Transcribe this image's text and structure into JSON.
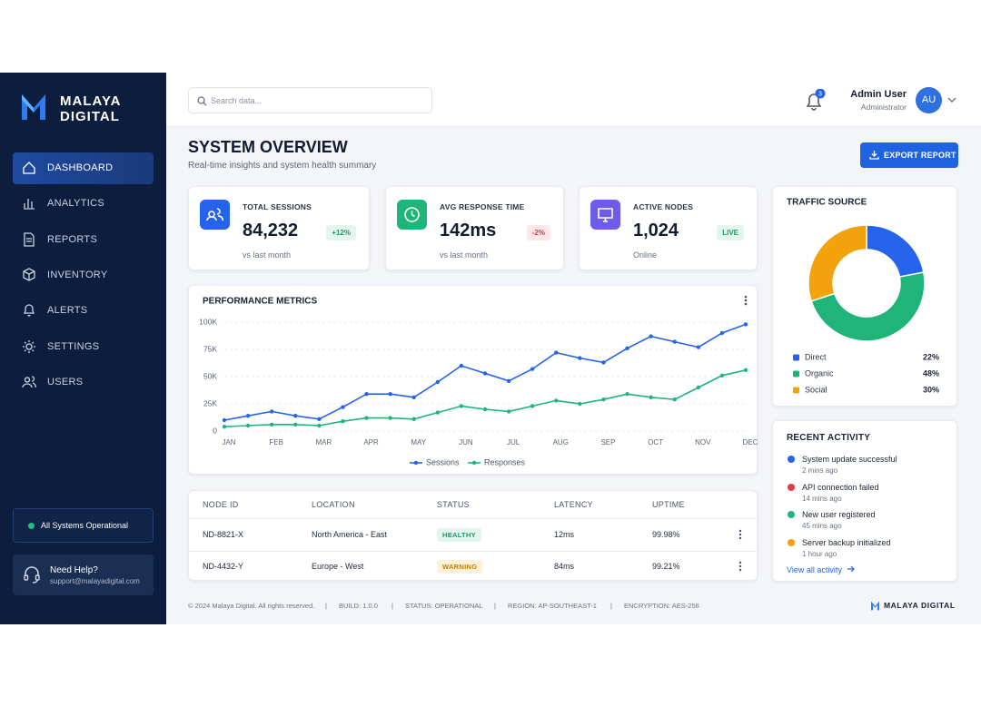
{
  "sidebar": {
    "brand": [
      "MALAYA",
      "DIGITAL"
    ],
    "nav": [
      "DASHBOARD",
      "ANALYTICS",
      "REPORTS",
      "INVENTORY",
      "ALERTS",
      "SETTINGS",
      "USERS"
    ],
    "status": "All Systems Operational",
    "help": {
      "title": "Need Help?",
      "email": "support@malayadigital.com"
    }
  },
  "header": {
    "search_placeholder": "Search data...",
    "notifications": "3",
    "user": {
      "name": "Admin User",
      "role": "Administrator",
      "initials": "AU"
    }
  },
  "page": {
    "title": "SYSTEM OVERVIEW",
    "subtitle": "Real-time insights and system health summary",
    "export": "EXPORT REPORT"
  },
  "kpis": [
    {
      "label": "TOTAL SESSIONS",
      "value": "84,232",
      "change": "+12%",
      "note": "vs last month"
    },
    {
      "label": "AVG RESPONSE TIME",
      "value": "142ms",
      "change": "-2%",
      "note": "vs last month"
    },
    {
      "label": "ACTIVE NODES",
      "value": "1,024",
      "change": "LIVE",
      "note": "Online"
    }
  ],
  "chart_data": [
    {
      "type": "line",
      "title": "PERFORMANCE METRICS",
      "categories": [
        "JAN",
        null,
        "FEB",
        null,
        "MAR",
        null,
        "APR",
        null,
        "MAY",
        null,
        "JUN",
        null,
        "JUL",
        null,
        "AUG",
        null,
        "SEP",
        null,
        "OCT",
        null,
        "NOV",
        null,
        "DEC"
      ],
      "series": [
        {
          "name": "Sessions",
          "color": "#2563eb",
          "values": [
            10000,
            14000,
            18000,
            14000,
            11000,
            22000,
            34000,
            34000,
            31000,
            45000,
            60000,
            53000,
            46000,
            57000,
            72000,
            67000,
            63000,
            76000,
            87000,
            82000,
            77000,
            90000,
            98000
          ]
        },
        {
          "name": "Responses",
          "color": "#1fb57a",
          "values": [
            4000,
            5000,
            6000,
            6000,
            5000,
            9000,
            12000,
            12000,
            11000,
            17000,
            23000,
            20000,
            18000,
            23000,
            28000,
            25000,
            29000,
            34000,
            31000,
            29000,
            40000,
            51000,
            56000
          ]
        }
      ],
      "ylim": [
        0,
        100000
      ],
      "yticks": [
        0,
        {
          "value": 25000,
          "label": "25K"
        },
        {
          "value": 50000,
          "label": "50K"
        },
        {
          "value": 75000,
          "label": "75K"
        },
        {
          "value": 100000,
          "label": "100K"
        }
      ],
      "grid": true
    },
    {
      "type": "pie",
      "title": "TRAFFIC SOURCE",
      "categories": [
        "Direct",
        "Organic",
        "Social"
      ],
      "values": [
        22,
        48,
        30
      ],
      "value_labels": [
        "22%",
        "48%",
        "30%"
      ],
      "colors": [
        "#2563eb",
        "#1fb57a",
        "#f2a20c"
      ]
    }
  ],
  "activity": {
    "title": "RECENT ACTIVITY",
    "items": [
      {
        "text": "System update successful",
        "time": "2 mins ago",
        "color": "#2563eb"
      },
      {
        "text": "API connection failed",
        "time": "14 mins ago",
        "color": "#e53945"
      },
      {
        "text": "New user registered",
        "time": "45 mins ago",
        "color": "#1fb57a"
      },
      {
        "text": "Server backup initialized",
        "time": "1 hour ago",
        "color": "#f2a20c"
      }
    ],
    "link": "View all activity"
  },
  "table": {
    "columns": [
      "NODE ID",
      "LOCATION",
      "STATUS",
      "LATENCY",
      "UPTIME"
    ],
    "rows": [
      [
        "ND-8821-X",
        "North America - East",
        "HEALTHY",
        "12ms",
        "99.98%"
      ],
      [
        "ND-4432-Y",
        "Europe - West",
        "WARNING",
        "84ms",
        "99.21%"
      ]
    ]
  },
  "footer": {
    "items": [
      "© 2024 Malaya Digital. All rights reserved.",
      "BUILD: 1.0.0",
      "STATUS: OPERATIONAL",
      "REGION: AP-SOUTHEAST-1",
      "ENCRYPTION: AES-256"
    ],
    "brand": "MALAYA DIGITAL"
  }
}
